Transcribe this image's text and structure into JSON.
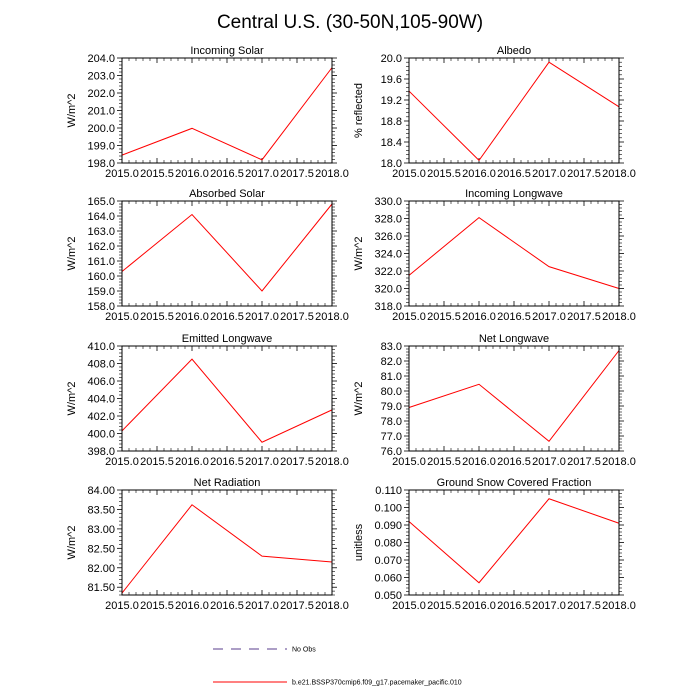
{
  "figure": {
    "title": "Central U.S. (30-50N,105-90W)"
  },
  "legend": {
    "items": [
      {
        "label": "No Obs",
        "color": "#5a3c8c",
        "style": "dashed"
      },
      {
        "label": "b.e21.BSSP370cmip6.f09_g17.pacemaker_pacific.010",
        "color": "#ff0000",
        "style": "solid"
      }
    ]
  },
  "chart_data": [
    {
      "type": "line",
      "title": "Incoming Solar",
      "ylabel": "W/m^2",
      "x": [
        2015.0,
        2016.0,
        2017.0,
        2018.0
      ],
      "xlim": [
        2015.0,
        2018.0
      ],
      "xticks": [
        "2015.0",
        "2015.5",
        "2016.0",
        "2016.5",
        "2017.0",
        "2017.5",
        "2018.0"
      ],
      "ylim": [
        198.0,
        204.0
      ],
      "yticks": [
        "198.0",
        "199.0",
        "200.0",
        "201.0",
        "202.0",
        "203.0",
        "204.0"
      ],
      "series": [
        {
          "color": "#ff0000",
          "values": [
            198.45,
            199.98,
            198.18,
            203.45
          ]
        }
      ]
    },
    {
      "type": "line",
      "title": "Albedo",
      "ylabel": "% reflected",
      "x": [
        2015.0,
        2016.0,
        2017.0,
        2018.0
      ],
      "xlim": [
        2015.0,
        2018.0
      ],
      "xticks": [
        "2015.0",
        "2015.5",
        "2016.0",
        "2016.5",
        "2017.0",
        "2017.5",
        "2018.0"
      ],
      "ylim": [
        18.0,
        20.0
      ],
      "yticks": [
        "18.0",
        "18.4",
        "18.8",
        "19.2",
        "19.6",
        "20.0"
      ],
      "series": [
        {
          "color": "#ff0000",
          "values": [
            19.37,
            18.05,
            19.92,
            19.07
          ]
        }
      ]
    },
    {
      "type": "line",
      "title": "Absorbed Solar",
      "ylabel": "W/m^2",
      "x": [
        2015.0,
        2016.0,
        2017.0,
        2018.0
      ],
      "xlim": [
        2015.0,
        2018.0
      ],
      "xticks": [
        "2015.0",
        "2015.5",
        "2016.0",
        "2016.5",
        "2017.0",
        "2017.5",
        "2018.0"
      ],
      "ylim": [
        158.0,
        165.0
      ],
      "yticks": [
        "158.0",
        "159.0",
        "160.0",
        "161.0",
        "162.0",
        "163.0",
        "164.0",
        "165.0"
      ],
      "series": [
        {
          "color": "#ff0000",
          "values": [
            160.3,
            164.1,
            159.0,
            164.8
          ]
        }
      ]
    },
    {
      "type": "line",
      "title": "Incoming Longwave",
      "ylabel": "W/m^2",
      "x": [
        2015.0,
        2016.0,
        2017.0,
        2018.0
      ],
      "xlim": [
        2015.0,
        2018.0
      ],
      "xticks": [
        "2015.0",
        "2015.5",
        "2016.0",
        "2016.5",
        "2017.0",
        "2017.5",
        "2018.0"
      ],
      "ylim": [
        318.0,
        330.0
      ],
      "yticks": [
        "318.0",
        "320.0",
        "322.0",
        "324.0",
        "326.0",
        "328.0",
        "330.0"
      ],
      "series": [
        {
          "color": "#ff0000",
          "values": [
            321.5,
            328.1,
            322.5,
            320.0
          ]
        }
      ]
    },
    {
      "type": "line",
      "title": "Emitted Longwave",
      "ylabel": "W/m^2",
      "x": [
        2015.0,
        2016.0,
        2017.0,
        2018.0
      ],
      "xlim": [
        2015.0,
        2018.0
      ],
      "xticks": [
        "2015.0",
        "2015.5",
        "2016.0",
        "2016.5",
        "2017.0",
        "2017.5",
        "2018.0"
      ],
      "ylim": [
        398.0,
        410.0
      ],
      "yticks": [
        "398.0",
        "400.0",
        "402.0",
        "404.0",
        "406.0",
        "408.0",
        "410.0"
      ],
      "series": [
        {
          "color": "#ff0000",
          "values": [
            400.3,
            408.5,
            399.0,
            402.7
          ]
        }
      ]
    },
    {
      "type": "line",
      "title": "Net Longwave",
      "ylabel": "W/m^2",
      "x": [
        2015.0,
        2016.0,
        2017.0,
        2018.0
      ],
      "xlim": [
        2015.0,
        2018.0
      ],
      "xticks": [
        "2015.0",
        "2015.5",
        "2016.0",
        "2016.5",
        "2017.0",
        "2017.5",
        "2018.0"
      ],
      "ylim": [
        76.0,
        83.0
      ],
      "yticks": [
        "76.0",
        "77.0",
        "78.0",
        "79.0",
        "80.0",
        "81.0",
        "82.0",
        "83.0"
      ],
      "series": [
        {
          "color": "#ff0000",
          "values": [
            78.9,
            80.45,
            76.65,
            82.7
          ]
        }
      ]
    },
    {
      "type": "line",
      "title": "Net Radiation",
      "ylabel": "W/m^2",
      "x": [
        2015.0,
        2016.0,
        2017.0,
        2018.0
      ],
      "xlim": [
        2015.0,
        2018.0
      ],
      "xticks": [
        "2015.0",
        "2015.5",
        "2016.0",
        "2016.5",
        "2017.0",
        "2017.5",
        "2018.0"
      ],
      "ylim": [
        81.3,
        84.0
      ],
      "yticks": [
        "81.50",
        "82.00",
        "82.50",
        "83.00",
        "83.50",
        "84.00"
      ],
      "ytickvals": [
        81.5,
        82.0,
        82.5,
        83.0,
        83.5,
        84.0
      ],
      "series": [
        {
          "color": "#ff0000",
          "values": [
            81.35,
            83.62,
            82.3,
            82.15
          ]
        }
      ]
    },
    {
      "type": "line",
      "title": "Ground Snow Covered Fraction",
      "ylabel": "unitless",
      "x": [
        2015.0,
        2016.0,
        2017.0,
        2018.0
      ],
      "xlim": [
        2015.0,
        2018.0
      ],
      "xticks": [
        "2015.0",
        "2015.5",
        "2016.0",
        "2016.5",
        "2017.0",
        "2017.5",
        "2018.0"
      ],
      "ylim": [
        0.05,
        0.11
      ],
      "yticks": [
        "0.050",
        "0.060",
        "0.070",
        "0.080",
        "0.090",
        "0.100",
        "0.110"
      ],
      "series": [
        {
          "color": "#ff0000",
          "values": [
            0.092,
            0.057,
            0.105,
            0.091
          ]
        }
      ]
    }
  ]
}
